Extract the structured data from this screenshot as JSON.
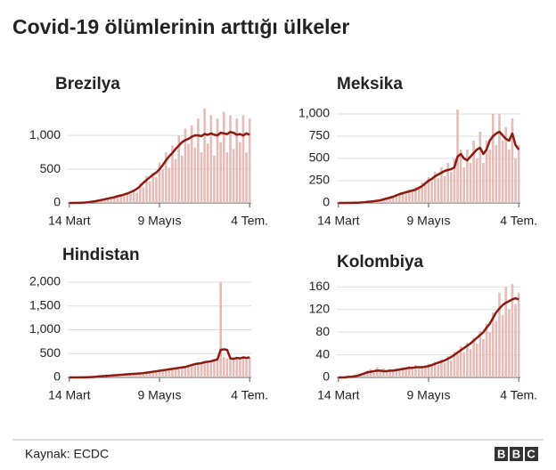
{
  "title": "Covid-19 ölümlerinin arttığı ülkeler",
  "source": "Kaynak: ECDC",
  "logo": "BBC",
  "chart_data": [
    {
      "type": "bar",
      "title": "Brezilya",
      "categories": [
        "14 Mart",
        null,
        null,
        null,
        null,
        null,
        null,
        null,
        null,
        null,
        null,
        null,
        null,
        null,
        null,
        null,
        null,
        null,
        null,
        null,
        null,
        null,
        null,
        null,
        null,
        null,
        null,
        null,
        "9 Mayıs",
        null,
        null,
        null,
        null,
        null,
        null,
        null,
        null,
        null,
        null,
        null,
        null,
        null,
        null,
        null,
        null,
        null,
        null,
        null,
        null,
        null,
        null,
        null,
        null,
        null,
        null,
        null,
        "4 Tem."
      ],
      "series": [
        {
          "color": "#e6bcb8",
          "values": [
            0,
            0,
            2,
            3,
            5,
            8,
            15,
            20,
            30,
            40,
            50,
            40,
            80,
            60,
            100,
            90,
            130,
            100,
            160,
            140,
            200,
            150,
            290,
            230,
            400,
            320,
            450,
            380,
            600,
            500,
            750,
            520,
            850,
            650,
            1000,
            700,
            1100,
            880,
            1150,
            820,
            1250,
            750,
            1400,
            880,
            1300,
            700,
            1250,
            900,
            1350,
            750,
            1300,
            800,
            1250,
            900,
            1300,
            750,
            1250
          ]
        },
        {
          "type": "line",
          "color": "#8e1b10",
          "values": [
            0,
            0,
            1,
            2,
            4,
            7,
            12,
            18,
            25,
            35,
            45,
            55,
            65,
            75,
            85,
            100,
            110,
            125,
            140,
            160,
            180,
            210,
            250,
            300,
            340,
            380,
            420,
            450,
            500,
            560,
            630,
            690,
            740,
            800,
            850,
            900,
            930,
            950,
            980,
            1000,
            1000,
            990,
            1020,
            1010,
            1030,
            1010,
            1000,
            1040,
            1030,
            1020,
            1050,
            1040,
            1010,
            1020,
            1000,
            1030,
            1010
          ]
        }
      ],
      "ylim": [
        0,
        1450
      ],
      "yticks": [
        0,
        500,
        {
          "value": 1000,
          "label": "1,000"
        }
      ],
      "grid": true
    },
    {
      "type": "bar",
      "title": "Meksika",
      "categories": [
        "14 Mart",
        null,
        null,
        null,
        null,
        null,
        null,
        null,
        null,
        null,
        null,
        null,
        null,
        null,
        null,
        null,
        null,
        null,
        null,
        null,
        null,
        null,
        null,
        null,
        null,
        null,
        null,
        null,
        "9 Mayıs",
        null,
        null,
        null,
        null,
        null,
        null,
        null,
        null,
        null,
        null,
        null,
        null,
        null,
        null,
        null,
        null,
        null,
        null,
        null,
        null,
        null,
        null,
        null,
        null,
        null,
        null,
        null,
        "4 Tem."
      ],
      "series": [
        {
          "color": "#e6bcb8",
          "values": [
            0,
            0,
            0,
            1,
            2,
            3,
            4,
            6,
            10,
            14,
            18,
            22,
            30,
            28,
            45,
            55,
            70,
            60,
            100,
            110,
            120,
            100,
            150,
            130,
            180,
            160,
            230,
            200,
            290,
            240,
            350,
            280,
            400,
            300,
            450,
            350,
            500,
            1050,
            600,
            400,
            600,
            450,
            700,
            500,
            800,
            450,
            700,
            600,
            1000,
            650,
            1000,
            700,
            850,
            600,
            950,
            500,
            650
          ]
        },
        {
          "type": "line",
          "color": "#8e1b10",
          "values": [
            0,
            0,
            0,
            1,
            1,
            2,
            3,
            5,
            8,
            12,
            15,
            20,
            25,
            30,
            40,
            50,
            60,
            70,
            85,
            100,
            110,
            120,
            130,
            140,
            150,
            170,
            190,
            220,
            250,
            270,
            300,
            320,
            340,
            360,
            370,
            380,
            400,
            520,
            550,
            500,
            480,
            520,
            560,
            600,
            620,
            550,
            600,
            700,
            750,
            780,
            800,
            760,
            720,
            700,
            780,
            650,
            600
          ]
        }
      ],
      "ylim": [
        0,
        1100
      ],
      "yticks": [
        0,
        250,
        500,
        750,
        {
          "value": 1000,
          "label": "1,000"
        }
      ],
      "grid": true
    },
    {
      "type": "bar",
      "title": "Hindistan",
      "categories": [
        "14 Mart",
        null,
        null,
        null,
        null,
        null,
        null,
        null,
        null,
        null,
        null,
        null,
        null,
        null,
        null,
        null,
        null,
        null,
        null,
        null,
        null,
        null,
        null,
        null,
        null,
        null,
        null,
        null,
        "9 Mayıs",
        null,
        null,
        null,
        null,
        null,
        null,
        null,
        null,
        null,
        null,
        null,
        null,
        null,
        null,
        null,
        null,
        null,
        null,
        null,
        null,
        null,
        null,
        null,
        null,
        null,
        null,
        null,
        "4 Tem."
      ],
      "series": [
        {
          "color": "#e6bcb8",
          "values": [
            0,
            0,
            1,
            1,
            2,
            4,
            6,
            10,
            15,
            25,
            30,
            28,
            40,
            38,
            50,
            45,
            60,
            55,
            70,
            65,
            80,
            70,
            95,
            85,
            110,
            100,
            130,
            120,
            150,
            140,
            170,
            150,
            195,
            180,
            210,
            200,
            230,
            240,
            270,
            280,
            300,
            290,
            330,
            320,
            350,
            340,
            400,
            2000,
            430,
            400,
            410,
            380,
            420,
            390,
            430,
            400,
            430
          ]
        },
        {
          "type": "line",
          "color": "#8e1b10",
          "values": [
            0,
            0,
            0,
            1,
            2,
            3,
            5,
            8,
            12,
            20,
            25,
            30,
            35,
            40,
            45,
            50,
            55,
            60,
            65,
            70,
            75,
            80,
            85,
            90,
            100,
            110,
            120,
            130,
            140,
            150,
            160,
            170,
            180,
            190,
            200,
            210,
            220,
            240,
            260,
            280,
            290,
            300,
            320,
            330,
            340,
            360,
            380,
            580,
            590,
            580,
            400,
            390,
            410,
            400,
            420,
            410,
            420
          ]
        }
      ],
      "ylim": [
        0,
        2000
      ],
      "yticks": [
        0,
        500,
        {
          "value": 1000,
          "label": "1,000"
        },
        {
          "value": 1500,
          "label": "1,500"
        },
        {
          "value": 2000,
          "label": "2,000"
        }
      ],
      "grid": true
    },
    {
      "type": "bar",
      "title": "Kolombiya",
      "categories": [
        "14 Mart",
        null,
        null,
        null,
        null,
        null,
        null,
        null,
        null,
        null,
        null,
        null,
        null,
        null,
        null,
        null,
        null,
        null,
        null,
        null,
        null,
        null,
        null,
        null,
        null,
        null,
        null,
        null,
        "9 Mayıs",
        null,
        null,
        null,
        null,
        null,
        null,
        null,
        null,
        null,
        null,
        null,
        null,
        null,
        null,
        null,
        null,
        null,
        null,
        null,
        null,
        null,
        null,
        null,
        null,
        null,
        null,
        null,
        "4 Tem."
      ],
      "series": [
        {
          "color": "#e6bcb8",
          "values": [
            0,
            0,
            0,
            1,
            2,
            3,
            4,
            6,
            9,
            12,
            15,
            8,
            18,
            10,
            16,
            9,
            14,
            11,
            16,
            12,
            18,
            14,
            20,
            15,
            22,
            16,
            20,
            18,
            24,
            20,
            28,
            22,
            32,
            26,
            38,
            30,
            45,
            40,
            55,
            45,
            62,
            50,
            70,
            60,
            82,
            68,
            95,
            80,
            115,
            100,
            150,
            110,
            160,
            120,
            165,
            130,
            150
          ]
        },
        {
          "type": "line",
          "color": "#8e1b10",
          "values": [
            0,
            0,
            0,
            1,
            1,
            2,
            3,
            5,
            7,
            9,
            10,
            11,
            12,
            12,
            11,
            11,
            12,
            12,
            13,
            14,
            15,
            16,
            17,
            17,
            18,
            18,
            18,
            19,
            20,
            22,
            24,
            26,
            28,
            30,
            33,
            36,
            40,
            44,
            48,
            52,
            56,
            60,
            65,
            70,
            75,
            80,
            88,
            95,
            105,
            115,
            122,
            128,
            132,
            135,
            138,
            140,
            138
          ]
        }
      ],
      "ylim": [
        0,
        170
      ],
      "yticks": [
        0,
        40,
        80,
        120,
        160
      ],
      "grid": true
    }
  ]
}
